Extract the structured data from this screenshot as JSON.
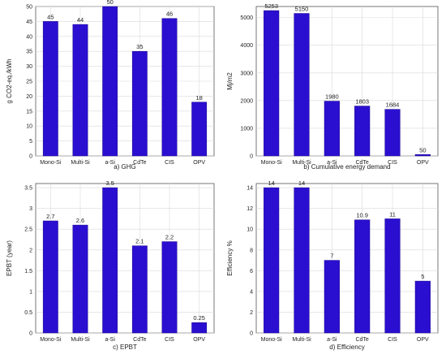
{
  "chart_data": [
    {
      "type": "bar",
      "caption": "a) GHG",
      "ylabel": "g CO2-eq./kWh",
      "categories": [
        "Mono-Si",
        "Multi-Si",
        "a-Si",
        "CdTe",
        "CIS",
        "OPV"
      ],
      "values": [
        45,
        44,
        50,
        35,
        46,
        18
      ],
      "value_labels": [
        "45",
        "44",
        "50",
        "35",
        "46",
        "18"
      ],
      "ylim": [
        0,
        50
      ],
      "yticks": [
        0,
        5,
        10,
        15,
        20,
        25,
        30,
        35,
        40,
        45,
        50
      ],
      "ytick_labels": [
        "0",
        "5",
        "10",
        "15",
        "20",
        "25",
        "30",
        "35",
        "40",
        "45",
        "50"
      ],
      "grid": true,
      "color": "#2a0fd0"
    },
    {
      "type": "bar",
      "caption": "b) Cumulative energy demand",
      "ylabel": "Mj/m2",
      "categories": [
        "Mono-Si",
        "Multi-Si",
        "a-Si",
        "CdTe",
        "CIS",
        "OPV"
      ],
      "values": [
        5253,
        5150,
        1980,
        1803,
        1684,
        50
      ],
      "value_labels": [
        "5253",
        "5150",
        "1980",
        "1803",
        "1684",
        "50"
      ],
      "ylim": [
        0,
        5400
      ],
      "yticks": [
        0,
        1000,
        2000,
        3000,
        4000,
        5000
      ],
      "ytick_labels": [
        "0",
        "1000",
        "2000",
        "3000",
        "4000",
        "5000"
      ],
      "grid": true,
      "color": "#2a0fd0"
    },
    {
      "type": "bar",
      "caption": "c) EPBT",
      "ylabel": "EPBT (year)",
      "categories": [
        "Mono-Si",
        "Multi-Si",
        "a-Si",
        "CdTe",
        "CIS",
        "OPV"
      ],
      "values": [
        2.7,
        2.6,
        3.5,
        2.1,
        2.2,
        0.25
      ],
      "value_labels": [
        "2.7",
        "2.6",
        "3.5",
        "2.1",
        "2.2",
        "0.25"
      ],
      "ylim": [
        0,
        3.6
      ],
      "yticks": [
        0,
        0.5,
        1,
        1.5,
        2,
        2.5,
        3,
        3.5
      ],
      "ytick_labels": [
        "0",
        "0.5",
        "1",
        "1.5",
        "2",
        "2.5",
        "3",
        "3.5"
      ],
      "grid": true,
      "color": "#2a0fd0"
    },
    {
      "type": "bar",
      "caption": "d) Efficiency",
      "ylabel": "Efficiency %",
      "categories": [
        "Mono-Si",
        "Multi-Si",
        "a-Si",
        "CdTe",
        "CIS",
        "OPV"
      ],
      "values": [
        14,
        14,
        7,
        10.9,
        11,
        5
      ],
      "value_labels": [
        "14",
        "14",
        "7",
        "10.9",
        "11",
        "5"
      ],
      "ylim": [
        0,
        14.4
      ],
      "yticks": [
        0,
        2,
        4,
        6,
        8,
        10,
        12,
        14
      ],
      "ytick_labels": [
        "0",
        "2",
        "4",
        "6",
        "8",
        "10",
        "12",
        "14"
      ],
      "grid": true,
      "color": "#2a0fd0"
    }
  ]
}
